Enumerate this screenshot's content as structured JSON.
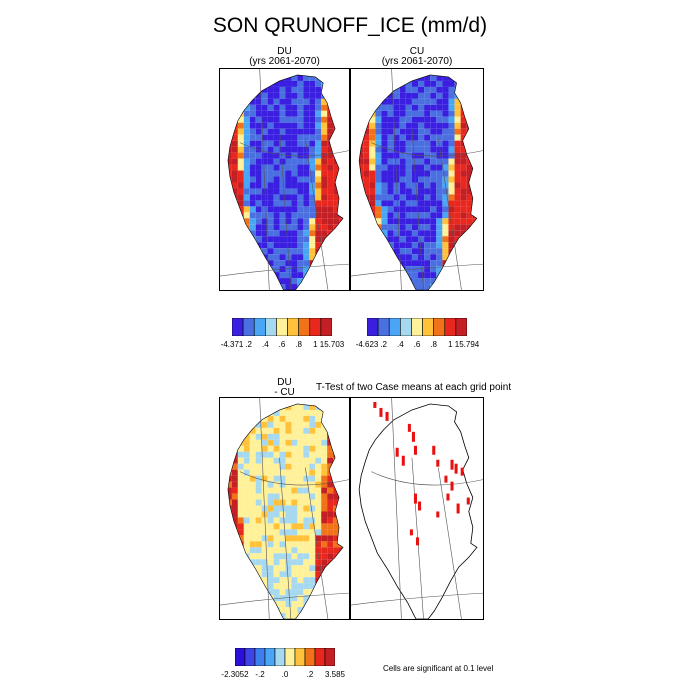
{
  "figure": {
    "title": "SON QRUNOFF_ICE (mm/d)",
    "panels": [
      {
        "id": "du",
        "title_line1": "DU",
        "title_line2": "(yrs 2061-2070)",
        "shading": "full"
      },
      {
        "id": "cu",
        "title_line1": "CU",
        "title_line2": "(yrs 2061-2070)",
        "shading": "full"
      },
      {
        "id": "diff",
        "title_line1": "DU",
        "title_line2": "- CU",
        "shading": "diff"
      },
      {
        "id": "ttest",
        "title": "T-Test of two Case means at each grid point",
        "shading": "ttest"
      }
    ],
    "labelbars": [
      {
        "id": "lb-du",
        "labels": [
          "-4.371",
          ".2",
          ".4",
          ".6",
          ".8",
          "1",
          "15.703"
        ],
        "colors": [
          "#3a1fe0",
          "#4a6fe0",
          "#4aa6f5",
          "#a6d8f0",
          "#fff09a",
          "#ffc23a",
          "#f0731a",
          "#e8281e",
          "#c51f26"
        ]
      },
      {
        "id": "lb-cu",
        "labels": [
          "-4.623",
          ".2",
          ".4",
          ".6",
          ".8",
          "1",
          "15.794"
        ],
        "colors": [
          "#3a1fe0",
          "#4a6fe0",
          "#4aa6f5",
          "#a6d8f0",
          "#fff09a",
          "#ffc23a",
          "#f0731a",
          "#e8281e",
          "#c51f26"
        ]
      },
      {
        "id": "lb-diff",
        "labels": [
          "-2.3052",
          "-.2",
          ".0",
          ".2",
          "3.585"
        ],
        "colors": [
          "#2a10d8",
          "#3e44e6",
          "#3e7ff0",
          "#4aa6f5",
          "#a6d8f0",
          "#fff09a",
          "#ffc23a",
          "#f0731a",
          "#e8281e",
          "#c51f26"
        ]
      }
    ],
    "significance_note": "Cells are significant at 0.1 level"
  }
}
